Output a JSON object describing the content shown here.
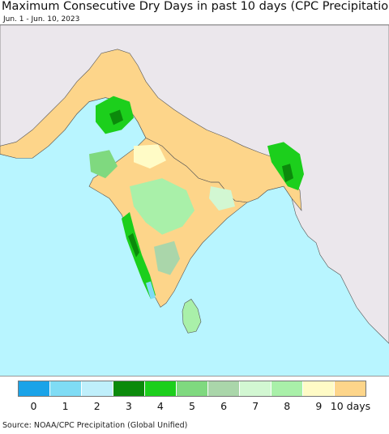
{
  "header": {
    "title": "Maximum Consecutive Dry Days in past 10 days (CPC Precipitation)",
    "date_range": "Jun. 1 - Jun. 10, 2023"
  },
  "map": {
    "region": "South Asia",
    "colors": {
      "ocean": "#b8f5ff",
      "land_outside": "#ebe7ec",
      "border": "#333333"
    }
  },
  "legend": {
    "classes": [
      {
        "label": "0",
        "color": "#1aa3e8"
      },
      {
        "label": "1",
        "color": "#7fdcf5"
      },
      {
        "label": "2",
        "color": "#bfeffb"
      },
      {
        "label": "3",
        "color": "#0b8a0b"
      },
      {
        "label": "4",
        "color": "#1ccf1c"
      },
      {
        "label": "5",
        "color": "#7fd97f"
      },
      {
        "label": "6",
        "color": "#aad6aa"
      },
      {
        "label": "7",
        "color": "#d2f7d2"
      },
      {
        "label": "8",
        "color": "#a9f0a9"
      },
      {
        "label": "9",
        "color": "#fffbc6"
      },
      {
        "label": "10 days",
        "color": "#fdd58a"
      }
    ]
  },
  "footer": {
    "source": "Source: NOAA/CPC Precipitation (Global Unified)"
  }
}
